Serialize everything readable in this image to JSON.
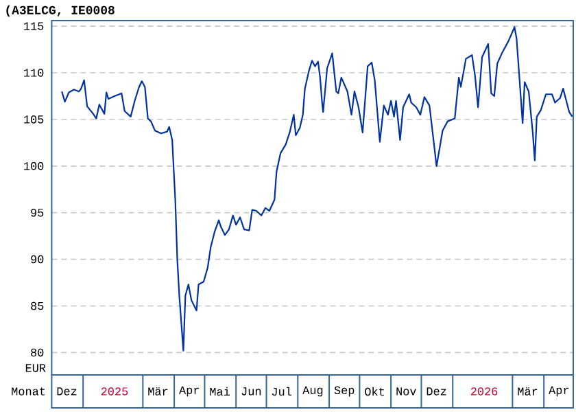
{
  "chart_data": {
    "type": "line",
    "title": "(A3ELCG, IE0008",
    "xlabel": "Monat",
    "ylabel": "EUR",
    "xlim": [
      "2024-12-01",
      "2026-04-30"
    ],
    "xticks": [
      {
        "value": "2024-12-16",
        "label": "Dez"
      },
      {
        "value": "2025-02-01",
        "label": "2025"
      },
      {
        "value": "2025-03-16",
        "label": "Mär"
      },
      {
        "value": "2025-04-16",
        "label": "Apr"
      },
      {
        "value": "2025-05-16",
        "label": "Mai"
      },
      {
        "value": "2025-06-16",
        "label": "Jun"
      },
      {
        "value": "2025-07-16",
        "label": "Jul"
      },
      {
        "value": "2025-08-16",
        "label": "Aug"
      },
      {
        "value": "2025-09-16",
        "label": "Sep"
      },
      {
        "value": "2025-10-16",
        "label": "Okt"
      },
      {
        "value": "2025-11-16",
        "label": "Nov"
      },
      {
        "value": "2025-12-16",
        "label": "Dez"
      },
      {
        "value": "2026-02-01",
        "label": "2026"
      },
      {
        "value": "2026-03-16",
        "label": "Mär"
      },
      {
        "value": "2026-04-16",
        "label": "Apr"
      }
    ],
    "ylim": [
      77.6,
      115.6
    ],
    "yticks": [
      80,
      85,
      90,
      95,
      100,
      105,
      110,
      115
    ],
    "grid": "y",
    "marker": "none",
    "line_style": "solid",
    "series": [
      {
        "color": "#0033a0",
        "x": [
          "2024-12-11",
          "2024-12-14",
          "2024-12-18",
          "2024-12-23",
          "2024-12-28",
          "2024-12-30",
          "2025-01-02",
          "2025-01-05",
          "2025-01-08",
          "2025-01-11",
          "2025-01-14",
          "2025-01-17",
          "2025-01-22",
          "2025-01-24",
          "2025-01-26",
          "2025-02-01",
          "2025-02-08",
          "2025-02-11",
          "2025-02-17",
          "2025-02-21",
          "2025-02-25",
          "2025-02-28",
          "2025-03-03",
          "2025-03-06",
          "2025-03-09",
          "2025-03-13",
          "2025-03-19",
          "2025-03-25",
          "2025-03-27",
          "2025-03-30",
          "2025-04-02",
          "2025-04-04",
          "2025-04-06",
          "2025-04-10",
          "2025-04-12",
          "2025-04-15",
          "2025-04-18",
          "2025-04-23",
          "2025-04-25",
          "2025-04-30",
          "2025-05-04",
          "2025-05-07",
          "2025-05-11",
          "2025-05-15",
          "2025-05-17",
          "2025-05-21",
          "2025-05-25",
          "2025-05-29",
          "2025-06-01",
          "2025-06-05",
          "2025-06-09",
          "2025-06-14",
          "2025-06-17",
          "2025-06-21",
          "2025-06-26",
          "2025-06-30",
          "2025-07-04",
          "2025-07-09",
          "2025-07-11",
          "2025-07-15",
          "2025-07-20",
          "2025-07-24",
          "2025-07-28",
          "2025-07-30",
          "2025-08-03",
          "2025-08-06",
          "2025-08-08",
          "2025-08-12",
          "2025-08-15",
          "2025-08-18",
          "2025-08-21",
          "2025-08-23",
          "2025-08-25",
          "2025-08-26",
          "2025-08-30",
          "2025-09-04",
          "2025-09-08",
          "2025-09-10",
          "2025-09-13",
          "2025-09-19",
          "2025-09-23",
          "2025-09-26",
          "2025-09-30",
          "2025-10-04",
          "2025-10-09",
          "2025-10-13",
          "2025-10-16",
          "2025-10-21",
          "2025-10-25",
          "2025-10-29",
          "2025-11-01",
          "2025-11-04",
          "2025-11-06",
          "2025-11-10",
          "2025-11-13",
          "2025-11-19",
          "2025-11-21",
          "2025-11-26",
          "2025-11-30",
          "2025-12-04",
          "2025-12-09",
          "2025-12-13",
          "2025-12-16",
          "2025-12-22",
          "2025-12-27",
          "2026-01-03",
          "2026-01-07",
          "2026-01-09",
          "2026-01-14",
          "2026-01-20",
          "2026-01-23",
          "2026-01-26",
          "2026-01-30",
          "2026-02-05",
          "2026-02-08",
          "2026-02-11",
          "2026-02-14",
          "2026-02-19",
          "2026-02-25",
          "2026-03-03",
          "2026-03-05",
          "2026-03-08",
          "2026-03-11",
          "2026-03-13",
          "2026-03-17",
          "2026-03-21",
          "2026-03-23",
          "2026-03-25",
          "2026-03-29",
          "2026-04-03",
          "2026-04-09",
          "2026-04-12",
          "2026-04-17",
          "2026-04-20",
          "2026-04-26",
          "2026-04-29"
        ],
        "values": [
          108.0,
          106.9,
          107.9,
          108.2,
          108.0,
          108.3,
          109.2,
          106.4,
          106.0,
          105.6,
          105.1,
          106.6,
          105.6,
          107.9,
          107.2,
          107.5,
          107.8,
          105.9,
          105.3,
          107.0,
          108.4,
          109.1,
          108.5,
          105.1,
          104.8,
          103.8,
          103.5,
          103.7,
          104.2,
          102.8,
          96.4,
          90.0,
          86.1,
          80.2,
          86.1,
          87.3,
          85.6,
          84.5,
          87.3,
          87.6,
          89.1,
          91.3,
          93.0,
          94.2,
          93.5,
          92.6,
          93.2,
          94.7,
          93.7,
          94.5,
          93.2,
          93.1,
          95.3,
          95.2,
          94.7,
          95.5,
          95.2,
          96.4,
          99.4,
          101.4,
          102.3,
          103.6,
          105.5,
          103.3,
          104.1,
          105.5,
          108.3,
          110.2,
          111.3,
          110.7,
          111.2,
          109.5,
          106.8,
          105.8,
          110.5,
          112.1,
          108.0,
          107.8,
          109.5,
          108.0,
          105.5,
          108.0,
          106.3,
          103.6,
          110.7,
          111.1,
          109.2,
          102.6,
          106.5,
          105.5,
          107.0,
          105.3,
          107.0,
          102.8,
          106.3,
          107.7,
          106.8,
          106.3,
          105.5,
          107.4,
          106.5,
          102.8,
          100.0,
          103.8,
          104.8,
          105.1,
          109.5,
          108.5,
          111.5,
          111.9,
          109.7,
          106.3,
          111.7,
          113.1,
          107.8,
          107.5,
          111.0,
          112.2,
          113.4,
          114.9,
          113.7,
          109.2,
          104.6,
          109.0,
          108.0,
          103.6,
          100.6,
          105.3,
          106.0,
          107.7,
          107.7,
          106.8,
          107.3,
          108.3,
          105.8,
          105.3
        ]
      }
    ]
  }
}
